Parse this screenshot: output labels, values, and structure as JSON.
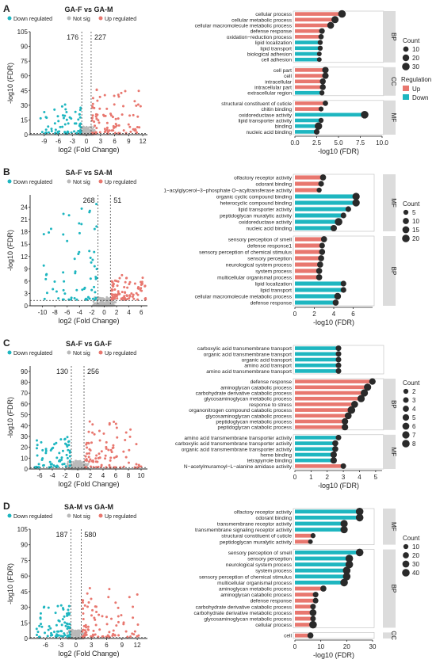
{
  "legend_labels": {
    "down": "Down regulated",
    "notsig": "Not sig",
    "up": "Up regulated"
  },
  "colors": {
    "up": "#e8776f",
    "down": "#1eb6c0",
    "notsig": "#b9b9b9",
    "panel_bg": "#dcdcdc",
    "dot": "#2a2a2a"
  },
  "axis_titles": {
    "volcano_x": "log2 (Fold Change)",
    "volcano_y": "-log10 (FDR)",
    "bar_x": "-log10 (FDR)"
  },
  "reg_legend": {
    "title": "Regulation",
    "up": "Up",
    "down": "Down"
  },
  "chart_data": [
    {
      "type": "scatter",
      "panel": "A",
      "title": "GA-F vs GA-M",
      "counts": {
        "down": 176,
        "up": 227
      },
      "xticks": [
        -9,
        -6,
        -3,
        0,
        3,
        6,
        9,
        12
      ],
      "yticks": [
        0,
        15,
        30,
        45,
        60,
        75,
        90,
        105
      ],
      "xlim": [
        -12,
        13
      ],
      "ylim": [
        0,
        105
      ],
      "threshold_x": [
        -1,
        1
      ],
      "threshold_y": 1.3
    },
    {
      "type": "bar",
      "panel": "A",
      "categories_groups": [
        {
          "name": "BP",
          "items": [
            [
              "cellular process",
              5.4,
              30,
              "up"
            ],
            [
              "cellular metabolic process",
              4.6,
              25,
              "up"
            ],
            [
              "cellular macromolecule metabolic process",
              4.1,
              22,
              "up"
            ],
            [
              "defense response",
              3.1,
              12,
              "up"
            ],
            [
              "oxidation−reduction process",
              3.0,
              10,
              "up"
            ],
            [
              "lipid localization",
              2.9,
              8,
              "down"
            ],
            [
              "lipid transport",
              2.9,
              8,
              "down"
            ],
            [
              "biological adhesion",
              2.8,
              6,
              "down"
            ],
            [
              "cell adhesion",
              2.8,
              6,
              "down"
            ]
          ]
        },
        {
          "name": "CC",
          "items": [
            [
              "cell part",
              3.5,
              18,
              "up"
            ],
            [
              "cell",
              3.5,
              18,
              "up"
            ],
            [
              "intracellular",
              3.2,
              14,
              "up"
            ],
            [
              "intracellular part",
              3.2,
              14,
              "up"
            ],
            [
              "extracellular region",
              3.1,
              8,
              "down"
            ]
          ]
        },
        {
          "name": "MF",
          "items": [
            [
              "structural constituent of cuticle",
              3.5,
              10,
              "up"
            ],
            [
              "chitin binding",
              3.0,
              7,
              "up"
            ],
            [
              "oxidoreductase activity",
              8.0,
              30,
              "down"
            ],
            [
              "lipid transporter activity",
              3.0,
              8,
              "down"
            ],
            [
              "binding",
              2.7,
              28,
              "down"
            ],
            [
              "nucleic acid binding",
              2.5,
              12,
              "down"
            ]
          ]
        }
      ],
      "xticks": [
        0.0,
        2.5,
        5.0,
        7.5,
        10.0
      ],
      "xlim": [
        0,
        10
      ],
      "count_legend": {
        "title": "Count",
        "values": [
          10,
          20,
          30
        ]
      }
    },
    {
      "type": "scatter",
      "panel": "B",
      "title": "SA-F vs SA-M",
      "counts": {
        "down": 268,
        "up": 51
      },
      "xticks": [
        -10,
        -8,
        -6,
        -4,
        -2,
        0,
        2,
        4,
        6
      ],
      "yticks": [
        0,
        3,
        6,
        9,
        12,
        15,
        18,
        21,
        24
      ],
      "xlim": [
        -12,
        7
      ],
      "ylim": [
        0,
        27
      ],
      "threshold_x": [
        -1,
        1
      ],
      "threshold_y": 1.3
    },
    {
      "type": "bar",
      "panel": "B",
      "categories_groups": [
        {
          "name": "MF",
          "items": [
            [
              "olfactory receptor activity",
              2.9,
              10,
              "up"
            ],
            [
              "odorant binding",
              2.7,
              8,
              "up"
            ],
            [
              "1−acylglycerol−3−phosphate O−acyltransferase activity",
              2.5,
              5,
              "up"
            ],
            [
              "organic cyclic compound binding",
              6.3,
              18,
              "down"
            ],
            [
              "heterocyclic compound binding",
              6.3,
              18,
              "down"
            ],
            [
              "lipid transporter activity",
              5.5,
              8,
              "down"
            ],
            [
              "peptidoglycan muralytic activity",
              5.0,
              8,
              "down"
            ],
            [
              "oxidoreductase activity",
              4.5,
              20,
              "down"
            ],
            [
              "nucleic acid binding",
              4.0,
              12,
              "down"
            ]
          ]
        },
        {
          "name": "BP",
          "items": [
            [
              "sensory perception of smell",
              3.0,
              10,
              "up"
            ],
            [
              "defense response1",
              2.8,
              8,
              "up"
            ],
            [
              "sensory perception of chemical stimulus",
              2.8,
              10,
              "up"
            ],
            [
              "sensory perception",
              2.7,
              10,
              "up"
            ],
            [
              "neurological system process",
              2.6,
              10,
              "up"
            ],
            [
              "system process",
              2.5,
              10,
              "up"
            ],
            [
              "multicellular organismal process",
              2.5,
              10,
              "up"
            ],
            [
              "lipid localization",
              5.0,
              8,
              "down"
            ],
            [
              "lipid transport",
              5.0,
              8,
              "down"
            ],
            [
              "cellular macromolecule metabolic process",
              4.4,
              14,
              "down"
            ],
            [
              "defense response",
              4.2,
              10,
              "down"
            ]
          ]
        }
      ],
      "xticks": [
        0,
        2,
        4,
        6
      ],
      "xlim": [
        0,
        8
      ],
      "count_legend": {
        "title": "Count",
        "values": [
          5,
          10,
          15,
          20
        ]
      }
    },
    {
      "type": "scatter",
      "panel": "C",
      "title": "SA-F vs GA-F",
      "counts": {
        "down": 130,
        "up": 256
      },
      "xticks": [
        -6,
        -4,
        -2,
        0,
        2,
        4,
        6,
        8,
        10
      ],
      "yticks": [
        0,
        10,
        20,
        30,
        40,
        50,
        60,
        70,
        80,
        90
      ],
      "xlim": [
        -7.5,
        11
      ],
      "ylim": [
        0,
        95
      ],
      "threshold_x": [
        -1,
        1
      ],
      "threshold_y": 1.3
    },
    {
      "type": "bar",
      "panel": "C",
      "categories_groups": [
        {
          "name": "",
          "items": [
            [
              "carboxylic acid transmembrane transport",
              2.7,
              3,
              "down"
            ],
            [
              "organic acid transmembrane transport",
              2.7,
              3,
              "down"
            ],
            [
              "organic acid transport",
              2.7,
              3,
              "down"
            ],
            [
              "amino acid transport",
              2.7,
              3,
              "down"
            ],
            [
              "amino acid transmembrane transport",
              2.7,
              3,
              "down"
            ]
          ]
        },
        {
          "name": "BP",
          "items": [
            [
              "defense response",
              4.8,
              5,
              "up"
            ],
            [
              "aminoglycan catabolic process",
              4.5,
              7,
              "up"
            ],
            [
              "carbohydrate derivative catabolic process",
              4.3,
              7,
              "up"
            ],
            [
              "glycosaminoglycan metabolic process",
              4.1,
              7,
              "up"
            ],
            [
              "response to stress",
              3.7,
              6,
              "up"
            ],
            [
              "organonitrogen compound catabolic process",
              3.5,
              8,
              "up"
            ],
            [
              "glycosaminoglycan catabolic process",
              3.3,
              6,
              "up"
            ],
            [
              "peptidoglycan metabolic process",
              3.1,
              5,
              "up"
            ],
            [
              "peptidoglycan catabolic process",
              3.1,
              5,
              "up"
            ]
          ]
        },
        {
          "name": "MF",
          "items": [
            [
              "amino acid transmembrane transporter activity",
              2.7,
              3,
              "down"
            ],
            [
              "carboxylic acid transmembrane transporter activity",
              2.5,
              4,
              "down"
            ],
            [
              "organic acid transmembrane transporter activity",
              2.5,
              4,
              "down"
            ],
            [
              "heme binding",
              2.4,
              5,
              "down"
            ],
            [
              "tetrapyrrole binding",
              2.4,
              5,
              "down"
            ],
            [
              "N−acetylmuramoyl−L−alanine amidase activity",
              3.0,
              3,
              "up"
            ]
          ]
        }
      ],
      "xticks": [
        0,
        1,
        2,
        3,
        4,
        5
      ],
      "xlim": [
        0,
        5.4
      ],
      "count_legend": {
        "title": "Count",
        "values": [
          2,
          3,
          4,
          5,
          6,
          7,
          8
        ]
      }
    },
    {
      "type": "scatter",
      "panel": "D",
      "title": "SA-M vs GA-M",
      "counts": {
        "down": 187,
        "up": 580
      },
      "xticks": [
        -6,
        -3,
        0,
        3,
        6,
        9,
        12
      ],
      "yticks": [
        0,
        15,
        30,
        45,
        60,
        75,
        90,
        105
      ],
      "xlim": [
        -9,
        14
      ],
      "ylim": [
        0,
        105
      ],
      "threshold_x": [
        -1,
        1
      ],
      "threshold_y": 1.3
    },
    {
      "type": "bar",
      "panel": "D",
      "categories_groups": [
        {
          "name": "MF",
          "items": [
            [
              "olfactory receptor activity",
              25,
              40,
              "down"
            ],
            [
              "odorant binding",
              25,
              40,
              "down"
            ],
            [
              "transmembrane receptor activity",
              19,
              35,
              "down"
            ],
            [
              "transmembrane signaling receptor activity",
              19,
              35,
              "down"
            ],
            [
              "structural constituent of cuticle",
              7,
              10,
              "up"
            ],
            [
              "peptidoglycan muralytic activity",
              6,
              8,
              "up"
            ]
          ]
        },
        {
          "name": "BP",
          "items": [
            [
              "sensory perception of smell",
              25,
              40,
              "down"
            ],
            [
              "sensory perception",
              21,
              40,
              "down"
            ],
            [
              "neurological system process",
              21,
              40,
              "down"
            ],
            [
              "system process",
              20,
              40,
              "down"
            ],
            [
              "sensory perception of chemical stimulus",
              20,
              40,
              "down"
            ],
            [
              "multicellular organismal process",
              19,
              40,
              "down"
            ],
            [
              "aminoglycan metabolic process",
              11,
              20,
              "up"
            ],
            [
              "aminoglycan catabolic process",
              8,
              15,
              "up"
            ],
            [
              "defense response",
              8,
              15,
              "up"
            ],
            [
              "carbohydrate derivative catabolic process",
              7,
              15,
              "up"
            ],
            [
              "carbohydrate derivative metabolic process",
              7,
              30,
              "up"
            ],
            [
              "glycosaminoglycan metabolic process",
              7,
              15,
              "up"
            ],
            [
              "cellular process",
              7,
              40,
              "up"
            ]
          ]
        },
        {
          "name": "CC",
          "items": [
            [
              "cell",
              6,
              20,
              "up"
            ]
          ]
        }
      ],
      "xticks": [
        0,
        10,
        20,
        30
      ],
      "xlim": [
        0,
        30
      ],
      "count_legend": {
        "title": "Count",
        "values": [
          10,
          20,
          30,
          40
        ]
      }
    }
  ]
}
